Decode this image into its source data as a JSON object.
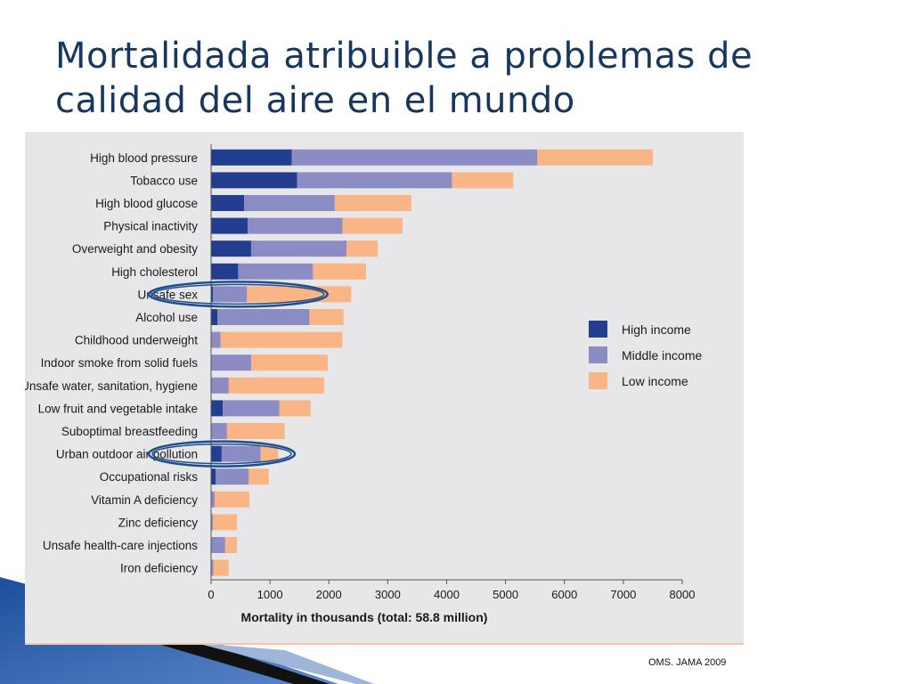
{
  "slide": {
    "title": "Mortalidada atribuible a problemas de calidad del aire en el mundo",
    "source": "OMS. JAMA 2009"
  },
  "colors": {
    "title": "#17375e",
    "high_income": "#233d91",
    "middle_income": "#8c8cc4",
    "low_income": "#f9b585",
    "highlight_ellipse": "#1f4e8c",
    "panel": "#e7e7e9"
  },
  "chart_data": {
    "type": "bar",
    "orientation": "horizontal",
    "stacked": true,
    "categories": [
      "High blood pressure",
      "Tobacco use",
      "High blood glucose",
      "Physical inactivity",
      "Overweight and obesity",
      "High cholesterol",
      "Unsafe sex",
      "Alcohol use",
      "Childhood underweight",
      "Indoor smoke from solid fuels",
      "Unsafe water, sanitation, hygiene",
      "Low fruit and vegetable intake",
      "Suboptimal breastfeeding",
      "Urban outdoor air pollution",
      "Occupational risks",
      "Vitamin A deficiency",
      "Zinc deficiency",
      "Unsafe health-care injections",
      "Iron deficiency"
    ],
    "series": [
      {
        "name": "High income",
        "values": [
          1370,
          1460,
          560,
          620,
          680,
          460,
          30,
          110,
          0,
          0,
          0,
          200,
          0,
          180,
          80,
          0,
          0,
          0,
          0
        ]
      },
      {
        "name": "Middle income",
        "values": [
          4170,
          2630,
          1540,
          1610,
          1620,
          1270,
          580,
          1560,
          160,
          680,
          300,
          960,
          270,
          660,
          560,
          60,
          30,
          240,
          40
        ]
      },
      {
        "name": "Low income",
        "values": [
          1960,
          1040,
          1300,
          1020,
          530,
          900,
          1770,
          580,
          2070,
          1300,
          1620,
          530,
          980,
          300,
          340,
          590,
          410,
          200,
          260
        ]
      }
    ],
    "xlabel": "Mortality in thousands (total: 58.8 million)",
    "ylabel": "",
    "xlim": [
      0,
      8000
    ],
    "xticks": [
      "0",
      "1000",
      "2000",
      "3000",
      "4000",
      "5000",
      "6000",
      "7000",
      "8000"
    ],
    "grid": false,
    "legend_position": "right",
    "highlighted_categories": [
      "Unsafe sex",
      "Urban outdoor air pollution"
    ]
  }
}
